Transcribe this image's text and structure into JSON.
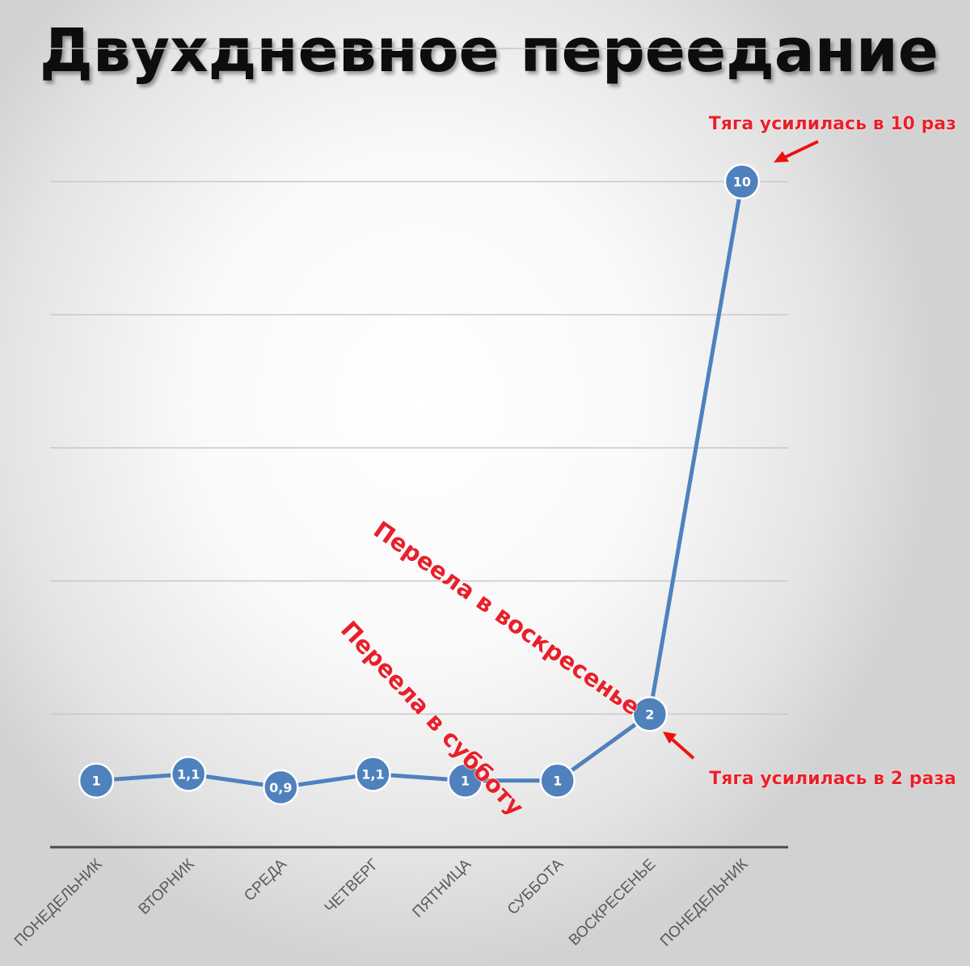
{
  "chart_data": {
    "type": "line",
    "title": "Двухдневное переедание",
    "categories": [
      "ПОНЕДЕЛЬНИК",
      "ВТОРНИК",
      "СРЕДА",
      "ЧЕТВЕРГ",
      "ПЯТНИЦА",
      "СУББОТА",
      "ВОСКРЕСЕНЬЕ",
      "ПОНЕДЕЛЬНИК"
    ],
    "series": [
      {
        "values": [
          1,
          1.1,
          0.9,
          1.1,
          1,
          1,
          2,
          10
        ],
        "labels": [
          "1",
          "1,1",
          "0,9",
          "1,1",
          "1",
          "1",
          "2",
          "10"
        ]
      }
    ],
    "ylim": [
      0,
      12
    ],
    "gridline_values": [
      2,
      4,
      6,
      8,
      10,
      12
    ],
    "grid": true,
    "legend": "none",
    "color": "#4f81bd",
    "annotations": [
      {
        "text": "Переела в субботу",
        "near_category": "СУББОТА",
        "color": "#e8202a"
      },
      {
        "text": "Переела в воскресенье",
        "near_category": "ВОСКРЕСЕНЬЕ",
        "color": "#e8202a"
      },
      {
        "text": "Тяга усилилась в 2 раза",
        "points_to_value": 2,
        "color": "#e8202a"
      },
      {
        "text": "Тяга усилилась в 10 раз",
        "points_to_value": 10,
        "color": "#e8202a"
      }
    ]
  }
}
